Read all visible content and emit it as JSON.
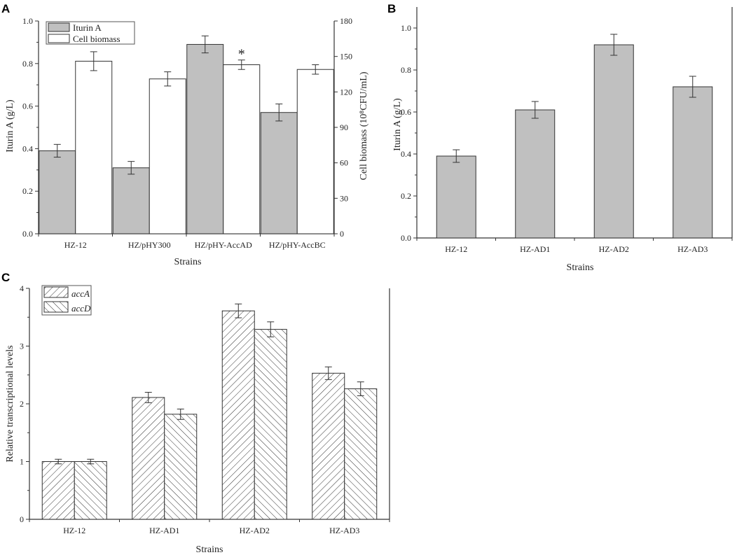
{
  "chart_data": [
    {
      "panel": "A",
      "type": "bar",
      "categories": [
        "HZ-12",
        "HZ/pHY300",
        "HZ/pHY-AccAD",
        "HZ/pHY-AccBC"
      ],
      "xlabel": "Strains",
      "ylabel": "Iturin A (g/L)",
      "ylabel_right": "Cell biomass (10⁸CFU/mL)",
      "ylim": [
        0,
        1.0
      ],
      "ylim_right": [
        0,
        180
      ],
      "yticks": [
        "0.0",
        "0.2",
        "0.4",
        "0.6",
        "0.8",
        "1.0"
      ],
      "yticks_right": [
        "0",
        "30",
        "60",
        "90",
        "120",
        "150",
        "180"
      ],
      "series": [
        {
          "name": "Iturin A",
          "axis": "left",
          "fill": "#c0c0c0",
          "values": [
            0.39,
            0.31,
            0.89,
            0.57
          ],
          "errors": [
            0.03,
            0.03,
            0.04,
            0.04
          ]
        },
        {
          "name": "Cell biomass",
          "axis": "right",
          "fill": "#ffffff",
          "values": [
            146,
            131,
            143,
            139
          ],
          "errors": [
            8,
            6,
            4,
            4
          ]
        }
      ],
      "annotations": [
        {
          "text": "*",
          "category": "HZ/pHY-AccAD",
          "series": "Cell biomass"
        }
      ],
      "legend": "top-left"
    },
    {
      "panel": "B",
      "type": "bar",
      "categories": [
        "HZ-12",
        "HZ-AD1",
        "HZ-AD2",
        "HZ-AD3"
      ],
      "xlabel": "Strains",
      "ylabel": "Iturin A (g/L)",
      "ylim": [
        0,
        1.1
      ],
      "yticks": [
        "0.0",
        "0.2",
        "0.4",
        "0.6",
        "0.8",
        "1.0"
      ],
      "series": [
        {
          "name": "Iturin A",
          "fill": "#c0c0c0",
          "values": [
            0.39,
            0.61,
            0.92,
            0.72
          ],
          "errors": [
            0.03,
            0.04,
            0.05,
            0.05
          ]
        }
      ]
    },
    {
      "panel": "C",
      "type": "bar",
      "categories": [
        "HZ-12",
        "HZ-AD1",
        "HZ-AD2",
        "HZ-AD3"
      ],
      "xlabel": "Strains",
      "ylabel": "Relative transcriptional levels",
      "ylim": [
        0,
        4
      ],
      "yticks": [
        "0",
        "1",
        "2",
        "3",
        "4"
      ],
      "series": [
        {
          "name": "accA",
          "pattern": "hatch-forward",
          "values": [
            1.0,
            2.11,
            3.61,
            2.53
          ],
          "errors": [
            0.04,
            0.09,
            0.12,
            0.11
          ]
        },
        {
          "name": "accD",
          "pattern": "hatch-back",
          "values": [
            1.0,
            1.82,
            3.29,
            2.26
          ],
          "errors": [
            0.04,
            0.09,
            0.13,
            0.12
          ]
        }
      ],
      "legend": "top-left"
    }
  ]
}
